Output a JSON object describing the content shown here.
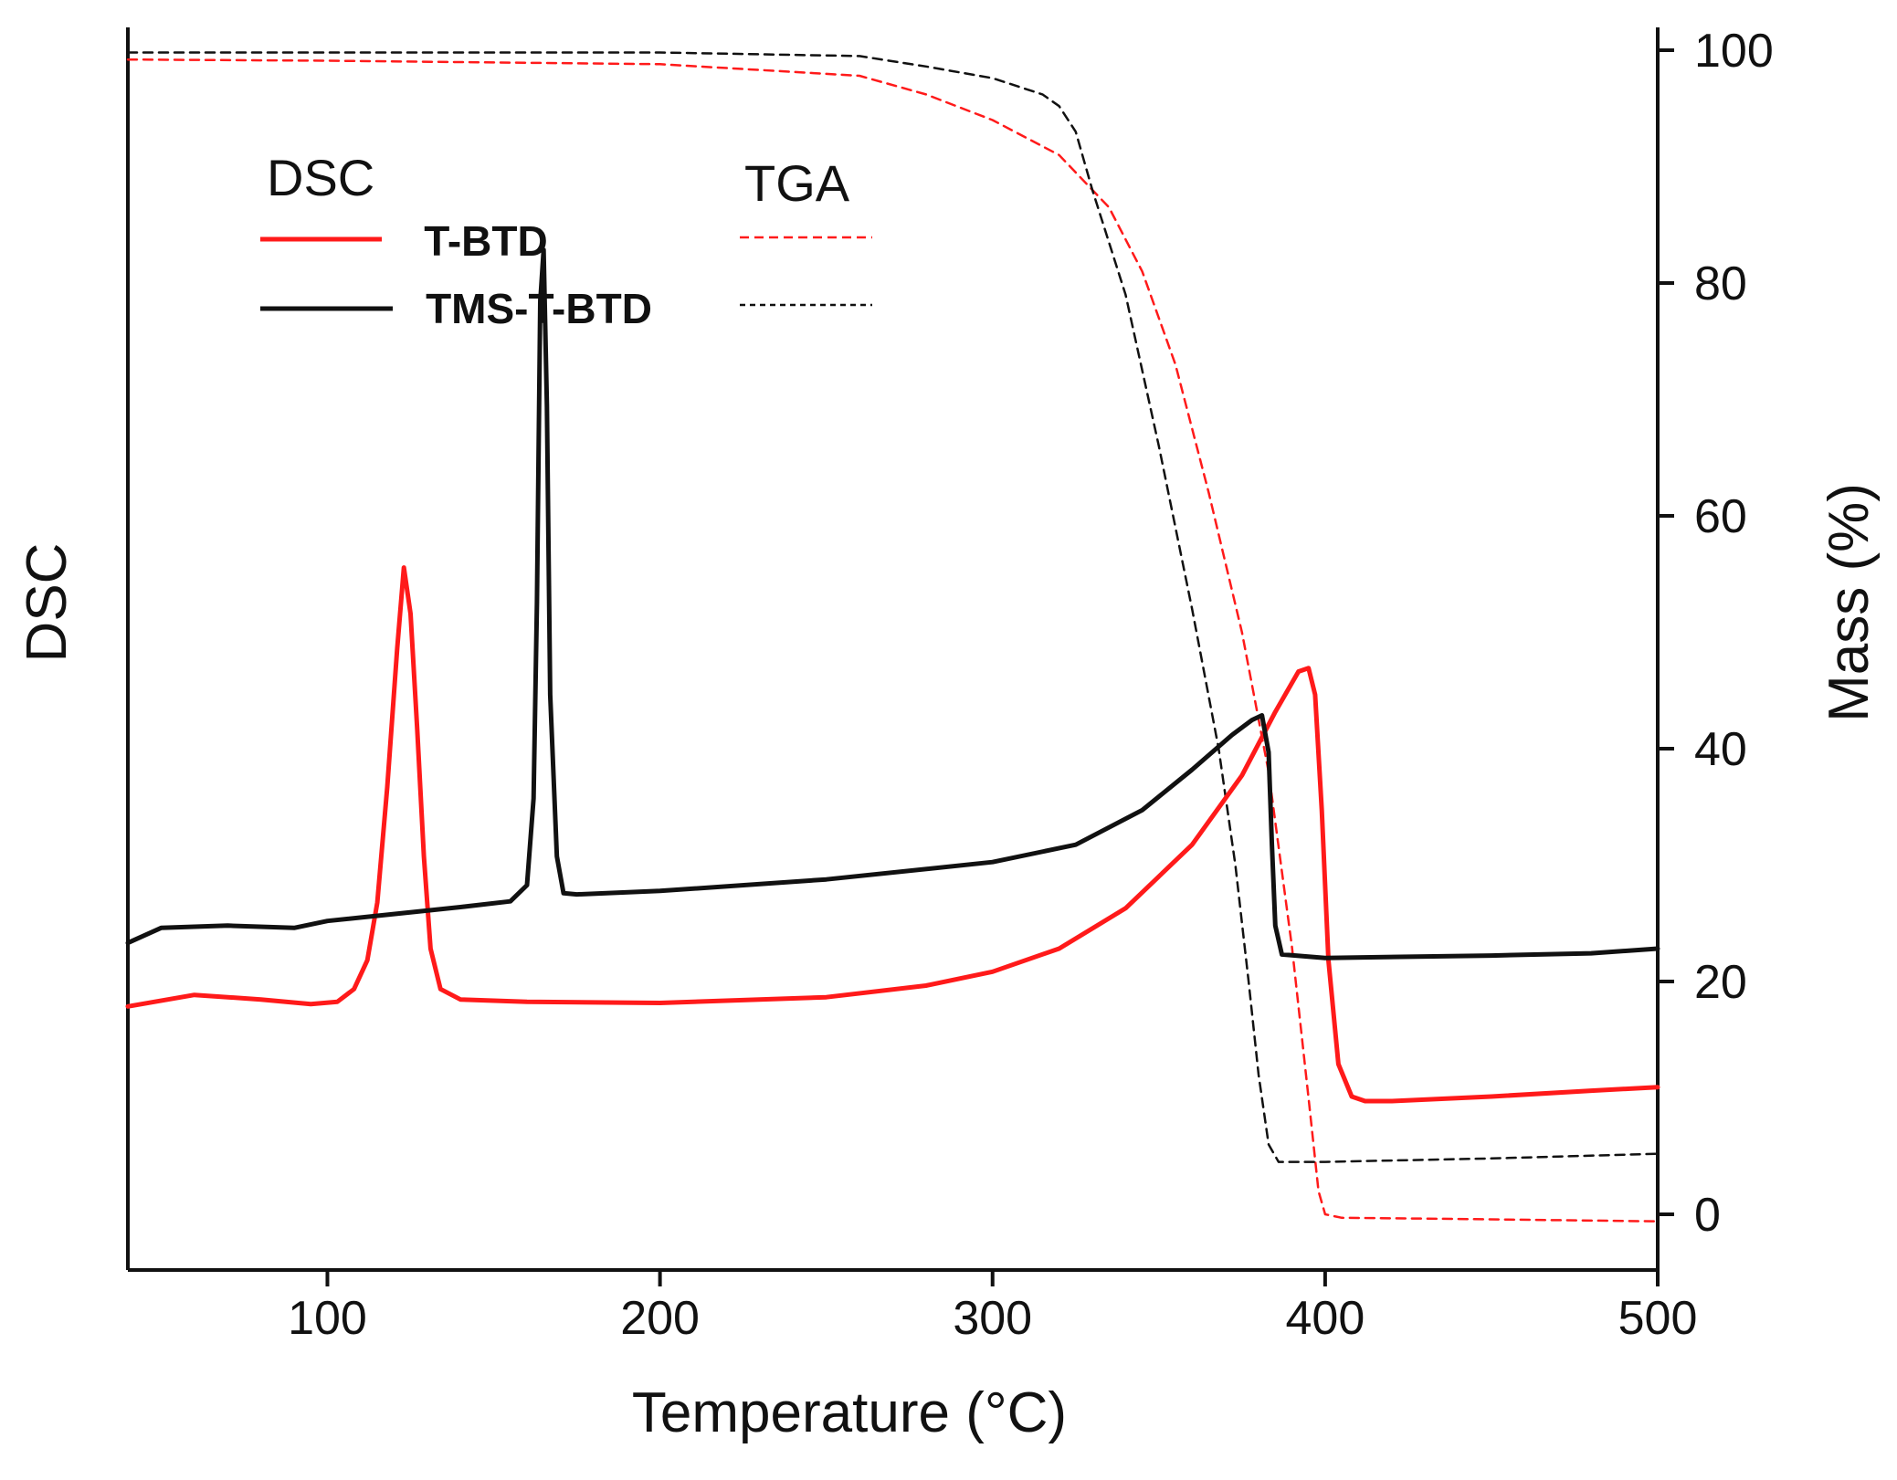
{
  "chart_data": {
    "type": "line",
    "title": "",
    "xlabel": "Temperature (°C)",
    "ylabel_left": "DSC",
    "ylabel_right": "Mass (%)",
    "xlim": [
      40,
      500
    ],
    "x_ticks": [
      100,
      200,
      300,
      400,
      500
    ],
    "y_right_lim": [
      -5,
      101
    ],
    "y_right_ticks": [
      0,
      20,
      40,
      60,
      80,
      100
    ],
    "dsc_lim": [
      0,
      100
    ],
    "legend": {
      "dsc_header": "DSC",
      "tga_header": "TGA",
      "entries": [
        "T-BTD",
        "TMS-T-BTD"
      ]
    },
    "colors": {
      "t_btd": "#ff1a1a",
      "tms_t_btd": "#111111",
      "axis": "#111111"
    },
    "series": [
      {
        "name": "T-BTD",
        "kind": "DSC",
        "axis": "left",
        "color": "#ff1a1a",
        "dash": "solid",
        "points": [
          [
            40,
            18
          ],
          [
            60,
            19
          ],
          [
            80,
            18.6
          ],
          [
            95,
            18.2
          ],
          [
            103,
            18.4
          ],
          [
            108,
            19.5
          ],
          [
            112,
            22
          ],
          [
            115,
            27
          ],
          [
            118,
            37
          ],
          [
            121,
            49
          ],
          [
            123,
            56
          ],
          [
            125,
            52
          ],
          [
            127,
            42
          ],
          [
            129,
            31
          ],
          [
            131,
            23
          ],
          [
            134,
            19.5
          ],
          [
            140,
            18.6
          ],
          [
            160,
            18.4
          ],
          [
            200,
            18.3
          ],
          [
            250,
            18.8
          ],
          [
            280,
            19.8
          ],
          [
            300,
            21
          ],
          [
            320,
            23
          ],
          [
            340,
            26.5
          ],
          [
            360,
            32
          ],
          [
            375,
            38
          ],
          [
            385,
            43.5
          ],
          [
            392,
            47
          ],
          [
            395,
            47.3
          ],
          [
            397,
            45
          ],
          [
            399,
            35
          ],
          [
            401,
            22
          ],
          [
            404,
            13
          ],
          [
            408,
            10.2
          ],
          [
            412,
            9.8
          ],
          [
            420,
            9.8
          ],
          [
            450,
            10.2
          ],
          [
            480,
            10.7
          ],
          [
            500,
            11
          ]
        ]
      },
      {
        "name": "TMS-T-BTD",
        "kind": "DSC",
        "axis": "left",
        "color": "#111111",
        "dash": "solid",
        "points": [
          [
            40,
            23.5
          ],
          [
            50,
            24.8
          ],
          [
            70,
            25
          ],
          [
            90,
            24.8
          ],
          [
            100,
            25.4
          ],
          [
            120,
            26
          ],
          [
            140,
            26.6
          ],
          [
            155,
            27.1
          ],
          [
            160,
            28.5
          ],
          [
            162,
            36
          ],
          [
            163,
            53
          ],
          [
            164,
            79
          ],
          [
            165,
            83.5
          ],
          [
            166,
            70
          ],
          [
            167,
            45
          ],
          [
            169,
            31
          ],
          [
            171,
            27.8
          ],
          [
            175,
            27.7
          ],
          [
            200,
            28
          ],
          [
            250,
            29
          ],
          [
            300,
            30.5
          ],
          [
            325,
            32
          ],
          [
            345,
            35
          ],
          [
            360,
            38.5
          ],
          [
            372,
            41.5
          ],
          [
            378,
            42.8
          ],
          [
            381,
            43.2
          ],
          [
            383,
            40
          ],
          [
            384,
            32
          ],
          [
            385,
            25
          ],
          [
            387,
            22.5
          ],
          [
            400,
            22.2
          ],
          [
            450,
            22.4
          ],
          [
            480,
            22.6
          ],
          [
            500,
            23
          ]
        ]
      },
      {
        "name": "T-BTD",
        "kind": "TGA",
        "axis": "right",
        "color": "#ff1a1a",
        "dash": "dashed",
        "points": [
          [
            40,
            99.2
          ],
          [
            100,
            99.1
          ],
          [
            200,
            98.8
          ],
          [
            260,
            97.8
          ],
          [
            280,
            96.2
          ],
          [
            300,
            94
          ],
          [
            320,
            91
          ],
          [
            335,
            86.5
          ],
          [
            345,
            81
          ],
          [
            355,
            73
          ],
          [
            365,
            62
          ],
          [
            375,
            50
          ],
          [
            383,
            38
          ],
          [
            390,
            23
          ],
          [
            395,
            10
          ],
          [
            398,
            2
          ],
          [
            400,
            0
          ],
          [
            405,
            -0.3
          ],
          [
            440,
            -0.4
          ],
          [
            500,
            -0.6
          ]
        ]
      },
      {
        "name": "TMS-T-BTD",
        "kind": "TGA",
        "axis": "right",
        "color": "#111111",
        "dash": "dashed",
        "points": [
          [
            40,
            99.8
          ],
          [
            100,
            99.8
          ],
          [
            200,
            99.8
          ],
          [
            260,
            99.5
          ],
          [
            280,
            98.6
          ],
          [
            300,
            97.6
          ],
          [
            315,
            96.2
          ],
          [
            320,
            95.2
          ],
          [
            325,
            93
          ],
          [
            330,
            88
          ],
          [
            340,
            79
          ],
          [
            350,
            66
          ],
          [
            360,
            52
          ],
          [
            368,
            40
          ],
          [
            373,
            30
          ],
          [
            377,
            20
          ],
          [
            380,
            12
          ],
          [
            383,
            6
          ],
          [
            386,
            4.5
          ],
          [
            400,
            4.5
          ],
          [
            450,
            4.8
          ],
          [
            500,
            5.2
          ]
        ]
      }
    ]
  }
}
